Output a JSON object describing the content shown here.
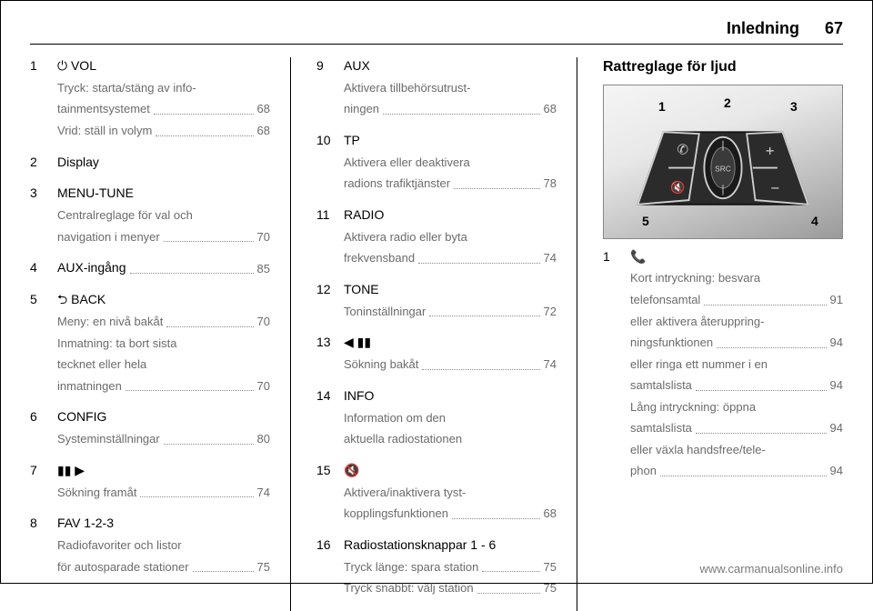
{
  "header": {
    "title": "Inledning",
    "page": "67"
  },
  "col1": [
    {
      "num": "1",
      "label": "⏻ VOL",
      "descs": [
        {
          "text": "Tryck: starta/stäng av info-\ntainmentsystemet",
          "pg": "68"
        },
        {
          "text": "Vrid: ställ in volym",
          "pg": "68"
        }
      ]
    },
    {
      "num": "2",
      "label": "Display",
      "descs": []
    },
    {
      "num": "3",
      "label": "MENU-TUNE",
      "descs": [
        {
          "text": "Centralreglage för val och\nnavigation i menyer",
          "pg": "70"
        }
      ]
    },
    {
      "num": "4",
      "label": "AUX-ingång",
      "label_pg": "85",
      "descs": []
    },
    {
      "num": "5",
      "label": "⮌ BACK",
      "descs": [
        {
          "text": "Meny: en nivå bakåt",
          "pg": "70"
        },
        {
          "text": "Inmatning: ta bort sista\ntecknet eller hela\ninmatningen",
          "pg": "70"
        }
      ]
    },
    {
      "num": "6",
      "label": "CONFIG",
      "descs": [
        {
          "text": "Systeminställningar",
          "pg": "80"
        }
      ]
    },
    {
      "num": "7",
      "label": "▮▮ ▶",
      "descs": [
        {
          "text": "Sökning framåt",
          "pg": "74"
        }
      ]
    },
    {
      "num": "8",
      "label": "FAV 1-2-3",
      "descs": [
        {
          "text": "Radiofavoriter och listor\nför autosparade stationer",
          "pg": "75"
        }
      ]
    }
  ],
  "col2": [
    {
      "num": "9",
      "label": "AUX",
      "descs": [
        {
          "text": "Aktivera tillbehörsutrust-\nningen",
          "pg": "68"
        }
      ]
    },
    {
      "num": "10",
      "label": "TP",
      "descs": [
        {
          "text": "Aktivera eller deaktivera\nradions trafiktjänster",
          "pg": "78"
        }
      ]
    },
    {
      "num": "11",
      "label": "RADIO",
      "descs": [
        {
          "text": "Aktivera radio eller byta\nfrekvensband",
          "pg": "74"
        }
      ]
    },
    {
      "num": "12",
      "label": "TONE",
      "descs": [
        {
          "text": "Toninställningar",
          "pg": "72"
        }
      ]
    },
    {
      "num": "13",
      "label": "◀ ▮▮",
      "descs": [
        {
          "text": "Sökning bakåt",
          "pg": "74"
        }
      ]
    },
    {
      "num": "14",
      "label": "INFO",
      "descs": [
        {
          "text": "Information om den\naktuella radiostationen",
          "pg": ""
        }
      ]
    },
    {
      "num": "15",
      "label": "🔇",
      "descs": [
        {
          "text": "Aktivera/inaktivera tyst-\nkopplingsfunktionen",
          "pg": "68"
        }
      ]
    },
    {
      "num": "16",
      "label": "Radiostationsknappar 1 - 6",
      "descs": [
        {
          "text": "Tryck länge: spara station",
          "pg": "75"
        },
        {
          "text": "Tryck snabbt: välj station",
          "pg": "75"
        }
      ]
    }
  ],
  "col3": {
    "heading": "Rattreglage för ljud",
    "image": {
      "callouts": [
        "1",
        "2",
        "3",
        "4",
        "5"
      ],
      "button_label": "SRC",
      "colors": {
        "bg_light": "#f2f2f2",
        "bg_dark": "#9a9a9a",
        "panel": "#2b2b2b",
        "outline": "#cfcfcf"
      }
    },
    "items": [
      {
        "num": "1",
        "label": "📞",
        "descs": [
          {
            "text": "Kort intryckning: besvara\ntelefonsamtal",
            "pg": "91"
          },
          {
            "text": "eller aktivera återuppring-\nningsfunktionen",
            "pg": "94"
          },
          {
            "text": "eller ringa ett nummer i en\nsamtalslista",
            "pg": "94"
          },
          {
            "text": "Lång intryckning: öppna\nsamtalslista",
            "pg": "94"
          },
          {
            "text": "eller växla handsfree/tele-\nphon",
            "pg": "94"
          }
        ]
      }
    ]
  },
  "footer": "www.carmanualsonline.info"
}
